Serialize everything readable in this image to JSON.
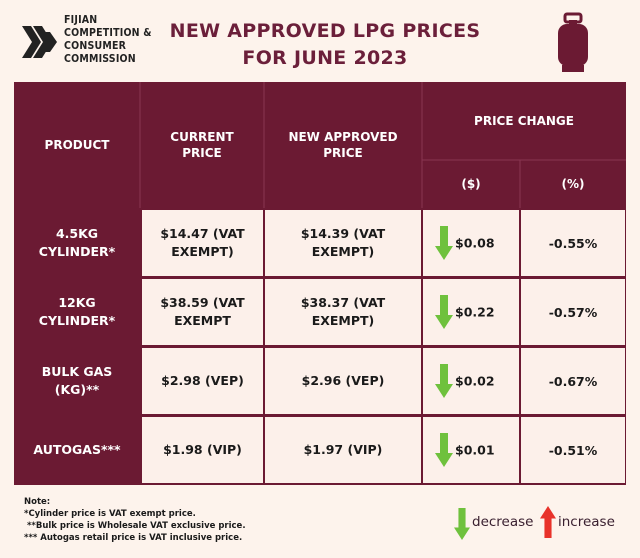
{
  "logo": {
    "lines": [
      "FIJIAN",
      "COMPETITION &",
      "CONSUMER",
      "COMMISSION"
    ]
  },
  "title": {
    "line1": "NEW APPROVED LPG PRICES",
    "line2": "FOR JUNE 2023"
  },
  "table": {
    "headers": {
      "product": "PRODUCT",
      "current": [
        "CURRENT",
        "PRICE"
      ],
      "new": [
        "NEW APPROVED",
        "PRICE"
      ],
      "change": "PRICE CHANGE",
      "change_dollar": "($)",
      "change_percent": "(%)"
    },
    "rows": [
      {
        "product": [
          "4.5KG",
          "CYLINDER*"
        ],
        "current": [
          "$14.47 (VAT",
          "EXEMPT)"
        ],
        "new": [
          "$14.39 (VAT",
          "EXEMPT)"
        ],
        "change_dollar": "$0.08",
        "change_percent": "-0.55%",
        "direction": "decrease"
      },
      {
        "product": [
          "12KG",
          "CYLINDER*"
        ],
        "current": [
          "$38.59 (VAT",
          "EXEMPT"
        ],
        "new": [
          "$38.37  (VAT",
          "EXEMPT)"
        ],
        "change_dollar": "$0.22",
        "change_percent": "-0.57%",
        "direction": "decrease"
      },
      {
        "product": [
          "BULK GAS",
          "(KG)**"
        ],
        "current": [
          "$2.98 (VEP)"
        ],
        "new": [
          "$2.96 (VEP)"
        ],
        "change_dollar": "$0.02",
        "change_percent": "-0.67%",
        "direction": "decrease"
      },
      {
        "product": [
          "AUTOGAS***"
        ],
        "current": [
          "$1.98 (VIP)"
        ],
        "new": [
          "$1.97 (VIP)"
        ],
        "change_dollar": "$0.01",
        "change_percent": "-0.51%",
        "direction": "decrease"
      }
    ]
  },
  "notes": {
    "heading": "Note:",
    "lines": [
      "*Cylinder price is VAT exempt price.",
      " **Bulk price is Wholesale VAT exclusive price.",
      "*** Autogas retail price is VAT inclusive price."
    ]
  },
  "legend": {
    "decrease": "decrease",
    "increase": "increase"
  },
  "colors": {
    "brand": "#6b1a33",
    "title": "#6b1f3a",
    "cell_bg": "#fcf0ea",
    "page_bg": "#fdf3ec",
    "decrease": "#6fc13d",
    "increase": "#e8322a"
  }
}
